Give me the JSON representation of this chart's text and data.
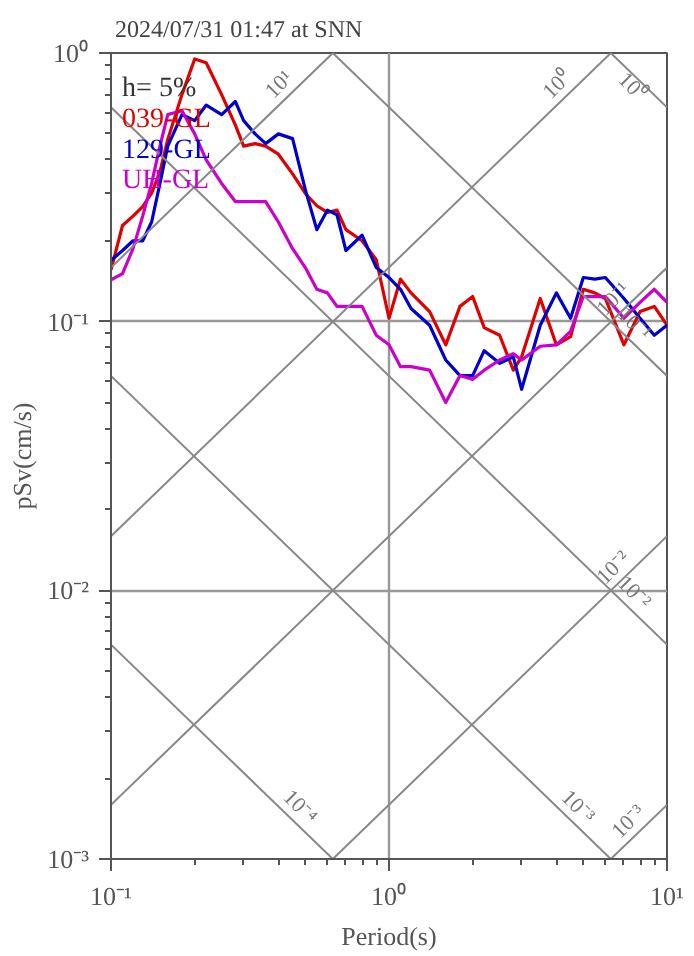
{
  "chart_data": {
    "type": "line",
    "title": "2024/07/31 01:47 at SNN",
    "xlabel": "Period(s)",
    "ylabel": "pSv(cm/s)",
    "log": "xy",
    "grid": true,
    "legend": "top left",
    "annotations": [
      "h= 5%"
    ],
    "xlim": [
      0.1,
      10
    ],
    "ylim": [
      0.001,
      1
    ],
    "xticks": [
      {
        "value": 0.1,
        "label": "10⁻¹"
      },
      {
        "value": 1,
        "label": "10⁰"
      },
      {
        "value": 10,
        "label": "10¹"
      }
    ],
    "yticks": [
      {
        "value": 0.001,
        "label": "10⁻³"
      },
      {
        "value": 0.01,
        "label": "10⁻²"
      },
      {
        "value": 0.1,
        "label": "10⁻¹"
      },
      {
        "value": 1,
        "label": "10⁰"
      }
    ],
    "x": [
      0.1,
      0.11,
      0.12,
      0.13,
      0.14,
      0.15,
      0.16,
      0.18,
      0.2,
      0.22,
      0.25,
      0.28,
      0.3,
      0.33,
      0.36,
      0.4,
      0.45,
      0.5,
      0.55,
      0.6,
      0.65,
      0.7,
      0.8,
      0.9,
      1.0,
      1.1,
      1.2,
      1.4,
      1.6,
      1.8,
      2,
      2.2,
      2.5,
      2.8,
      3,
      3.5,
      4,
      4.5,
      5,
      5.5,
      6,
      7,
      8,
      9,
      10
    ],
    "series": [
      {
        "name": "039-GL",
        "color": "#e00000",
        "values": [
          0.156,
          0.228,
          0.247,
          0.268,
          0.301,
          0.361,
          0.477,
          0.7,
          0.95,
          0.92,
          0.7,
          0.54,
          0.45,
          0.46,
          0.45,
          0.42,
          0.355,
          0.3,
          0.27,
          0.255,
          0.26,
          0.22,
          0.2,
          0.17,
          0.103,
          0.144,
          0.128,
          0.109,
          0.082,
          0.114,
          0.124,
          0.095,
          0.089,
          0.066,
          0.074,
          0.122,
          0.082,
          0.088,
          0.132,
          0.128,
          0.122,
          0.082,
          0.109,
          0.114,
          0.097
        ]
      },
      {
        "name": "129-GL",
        "color": "#0000cc",
        "values": [
          0.169,
          0.184,
          0.2,
          0.2,
          0.235,
          0.327,
          0.45,
          0.59,
          0.56,
          0.64,
          0.59,
          0.66,
          0.56,
          0.5,
          0.46,
          0.5,
          0.48,
          0.31,
          0.22,
          0.26,
          0.25,
          0.184,
          0.21,
          0.159,
          0.146,
          0.132,
          0.112,
          0.097,
          0.072,
          0.063,
          0.063,
          0.078,
          0.07,
          0.074,
          0.056,
          0.097,
          0.128,
          0.103,
          0.146,
          0.144,
          0.146,
          0.122,
          0.103,
          0.089,
          0.097
        ]
      },
      {
        "name": "UH-GL",
        "color": "#cc00cc",
        "values": [
          0.143,
          0.151,
          0.187,
          0.247,
          0.327,
          0.45,
          0.59,
          0.61,
          0.5,
          0.4,
          0.327,
          0.28,
          0.28,
          0.28,
          0.28,
          0.235,
          0.187,
          0.159,
          0.132,
          0.128,
          0.114,
          0.114,
          0.114,
          0.089,
          0.082,
          0.068,
          0.068,
          0.066,
          0.05,
          0.063,
          0.061,
          0.066,
          0.072,
          0.076,
          0.072,
          0.081,
          0.082,
          0.092,
          0.124,
          0.124,
          0.124,
          0.103,
          0.118,
          0.132,
          0.118
        ]
      },
      {
        "name": "10¹",
        "color": "#888888",
        "x": [
          0.1,
          0.628
        ],
        "values": [
          0.159,
          1
        ]
      },
      {
        "name": "10⁰",
        "color": "#888888",
        "x": [
          0.1,
          6.28
        ],
        "values": [
          0.0159,
          1
        ]
      },
      {
        "name": "10⁻¹",
        "color": "#888888",
        "x": [
          0.1,
          10
        ],
        "values": [
          0.00159,
          0.159
        ]
      },
      {
        "name": "10⁻²",
        "color": "#888888",
        "x": [
          0.628,
          10
        ],
        "values": [
          0.001,
          0.0159
        ]
      },
      {
        "name": "10⁻³",
        "color": "#888888",
        "x": [
          6.28,
          10
        ],
        "values": [
          0.001,
          0.00159
        ]
      },
      {
        "name": "10⁰",
        "color": "#888888",
        "x": [
          6.28,
          10
        ],
        "values": [
          1,
          0.628
        ]
      },
      {
        "name": "10⁻¹",
        "color": "#888888",
        "x": [
          0.628,
          10
        ],
        "values": [
          1,
          0.0628
        ]
      },
      {
        "name": "10⁻²",
        "color": "#888888",
        "x": [
          0.1,
          10
        ],
        "values": [
          0.628,
          0.00628
        ]
      },
      {
        "name": "10⁻³",
        "color": "#888888",
        "x": [
          0.1,
          6.28
        ],
        "values": [
          0.0628,
          0.001
        ]
      },
      {
        "name": "10⁻⁴",
        "color": "#888888",
        "x": [
          0.1,
          0.628
        ],
        "values": [
          0.00628,
          0.001
        ]
      }
    ]
  }
}
